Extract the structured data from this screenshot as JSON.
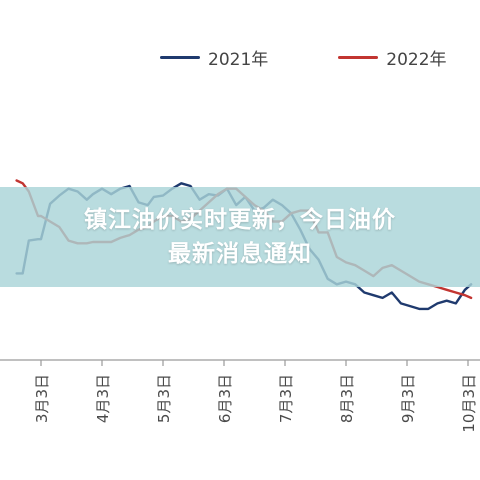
{
  "banner": {
    "line1": "镇江油价实时更新，今日油价",
    "line2": "最新消息通知"
  },
  "chart_data": {
    "type": "line",
    "title": "",
    "xlabel": "",
    "ylabel": "",
    "legend_position": "top-center",
    "grid": false,
    "ylim": [
      0,
      100
    ],
    "x": [
      2.6,
      2.7,
      2.8,
      2.95,
      3.0,
      3.15,
      3.3,
      3.45,
      3.6,
      3.75,
      3.85,
      4.0,
      4.15,
      4.3,
      4.45,
      4.6,
      4.75,
      4.85,
      5.0,
      5.15,
      5.3,
      5.45,
      5.6,
      5.75,
      5.9,
      6.05,
      6.2,
      6.35,
      6.5,
      6.65,
      6.8,
      6.95,
      7.1,
      7.25,
      7.4,
      7.55,
      7.7,
      7.85,
      8.0,
      8.15,
      8.3,
      8.45,
      8.6,
      8.75,
      8.9,
      9.05,
      9.2,
      9.35,
      9.5,
      9.65,
      9.8,
      9.95,
      10.05
    ],
    "categories": [
      "3月3日",
      "4月3日",
      "5月3日",
      "6月3日",
      "7月3日",
      "8月3日",
      "9月3日",
      "10月3日"
    ],
    "category_x": [
      3,
      4,
      5,
      6,
      7,
      8,
      9,
      10
    ],
    "series": [
      {
        "name": "2021年",
        "color": "#1f3a6e",
        "values": [
          31,
          31,
          43,
          43.5,
          43.5,
          56.5,
          59.5,
          62,
          61,
          58,
          60,
          62,
          60,
          62,
          63,
          57,
          56,
          59,
          59.5,
          62,
          64,
          63,
          58,
          60,
          59.5,
          62,
          56,
          59,
          54,
          55,
          58,
          56,
          53,
          47,
          40,
          36,
          29,
          27,
          28,
          27,
          24,
          23,
          22,
          24,
          20,
          19,
          18,
          18,
          20,
          21,
          20,
          25,
          27
        ]
      },
      {
        "name": "2022年",
        "color": "#c23531",
        "values": [
          65,
          64,
          61,
          52,
          52,
          50,
          48,
          43,
          42,
          42,
          42.5,
          42.5,
          42.5,
          44,
          45,
          47,
          48,
          50,
          52,
          52,
          50,
          51,
          54,
          57,
          60,
          62,
          62,
          59,
          56,
          54,
          50,
          50,
          53,
          54,
          54,
          46,
          46,
          37,
          35,
          34,
          32,
          30,
          33,
          34,
          32,
          30,
          28,
          27,
          26,
          25,
          24,
          23,
          22
        ]
      }
    ]
  }
}
